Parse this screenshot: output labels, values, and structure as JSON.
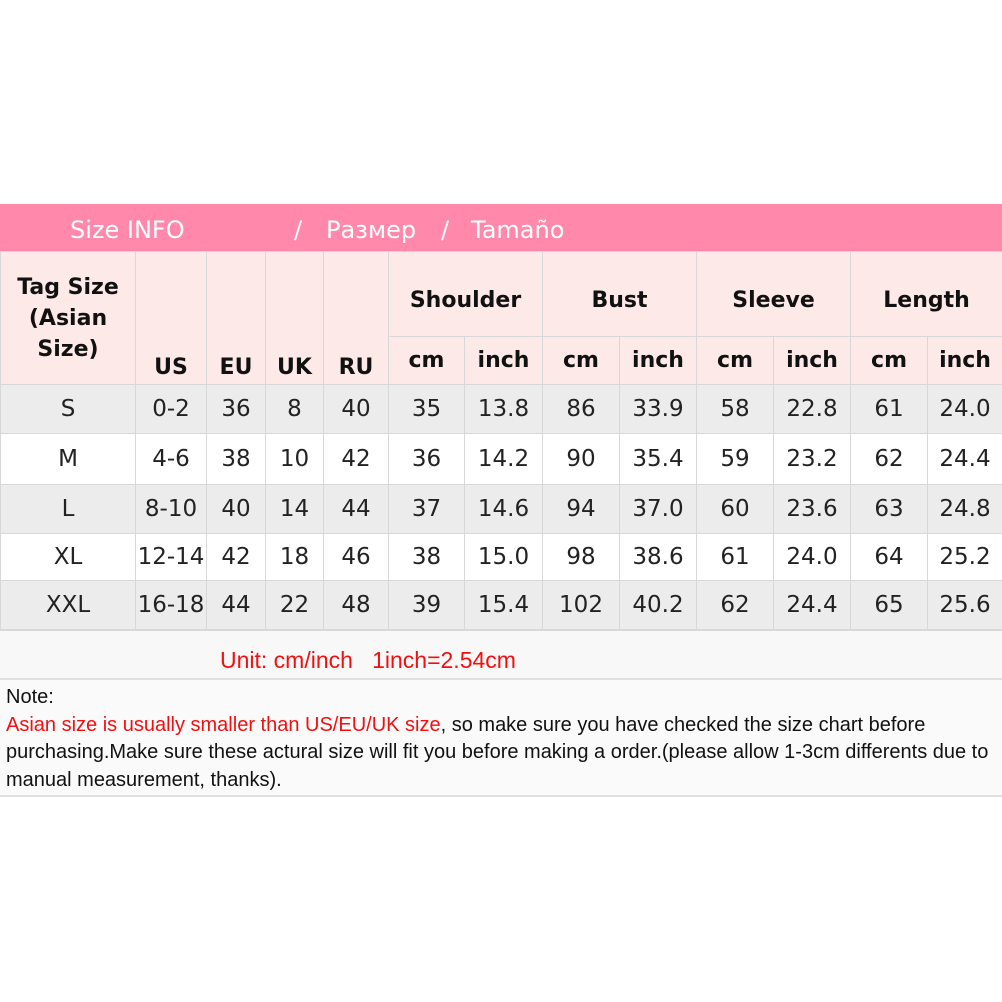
{
  "title": {
    "en": "Size INFO",
    "sep": "/",
    "ru": "Размер",
    "es": "Tamaño"
  },
  "headers": {
    "tag": "Tag Size (Asian Size)",
    "us": "US",
    "eu": "EU",
    "uk": "UK",
    "ru": "RU",
    "groups": [
      "Shoulder",
      "Bust",
      "Sleeve",
      "Length"
    ],
    "cm": "cm",
    "inch": "inch"
  },
  "rows": [
    [
      "S",
      "0-2",
      "36",
      "8",
      "40",
      "35",
      "13.8",
      "86",
      "33.9",
      "58",
      "22.8",
      "61",
      "24.0"
    ],
    [
      "M",
      "4-6",
      "38",
      "10",
      "42",
      "36",
      "14.2",
      "90",
      "35.4",
      "59",
      "23.2",
      "62",
      "24.4"
    ],
    [
      "L",
      "8-10",
      "40",
      "14",
      "44",
      "37",
      "14.6",
      "94",
      "37.0",
      "60",
      "23.6",
      "63",
      "24.8"
    ],
    [
      "XL",
      "12-14",
      "42",
      "18",
      "46",
      "38",
      "15.0",
      "98",
      "38.6",
      "61",
      "24.0",
      "64",
      "25.2"
    ],
    [
      "XXL",
      "16-18",
      "44",
      "22",
      "48",
      "39",
      "15.4",
      "102",
      "40.2",
      "62",
      "24.4",
      "65",
      "25.6"
    ]
  ],
  "unit": "Unit: cm/inch   1inch=2.54cm",
  "note": {
    "label": "Note:",
    "highlight": "Asian size is usually smaller than US/EU/UK size",
    "rest": ", so make sure you have checked the size chart before purchasing.Make sure these actural size will fit you before making a order.(please allow 1-3cm differents due to manual measurement, thanks)."
  },
  "colors": {
    "title_bg": "#ff88ab",
    "header_bg": "#fdeae8",
    "row_alt": "#ececec",
    "warning": "#f01010"
  }
}
